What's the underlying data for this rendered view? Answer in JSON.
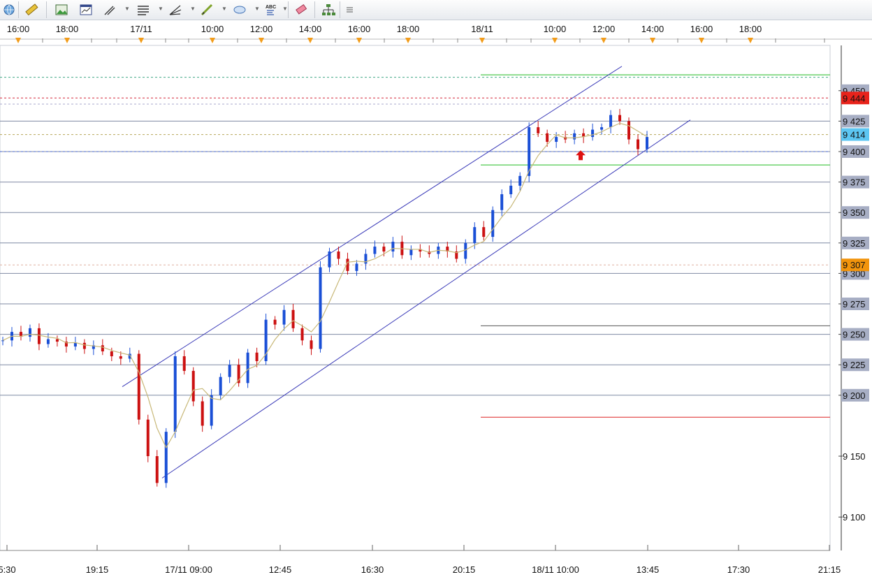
{
  "toolbar": {
    "tools": [
      {
        "name": "globe-icon"
      },
      {
        "name": "ruler-icon"
      },
      {
        "name": "picture-icon"
      },
      {
        "name": "window-chart-icon"
      },
      {
        "name": "line-tools-icon"
      },
      {
        "name": "fibonacci-icon"
      },
      {
        "name": "fan-icon"
      },
      {
        "name": "pen-icon"
      },
      {
        "name": "ellipse-icon"
      },
      {
        "name": "text-abc-icon",
        "text": "ABC"
      },
      {
        "name": "eraser-icon"
      },
      {
        "name": "tree-icon"
      },
      {
        "name": "menu-icon"
      }
    ]
  },
  "chart_data": {
    "type": "candlestick",
    "top_time_labels": [
      "16:00",
      "18:00",
      "17/11",
      "10:00",
      "12:00",
      "14:00",
      "16:00",
      "18:00",
      "18/11",
      "10:00",
      "12:00",
      "14:00",
      "16:00",
      "18:00"
    ],
    "bottom_time_labels": [
      "5:30",
      "19:15",
      "17/11 09:00",
      "12:45",
      "16:30",
      "20:15",
      "18/11 10:00",
      "13:45",
      "17:30",
      "21:15"
    ],
    "y_ticks": [
      "9 100",
      "9 150",
      "9 200",
      "9 225",
      "9 250",
      "9 275",
      "9 300",
      "9 325",
      "9 350",
      "9 375",
      "9 400",
      "9 425",
      "9 450"
    ],
    "y_values": [
      9100,
      9150,
      9200,
      9225,
      9250,
      9275,
      9300,
      9325,
      9350,
      9375,
      9400,
      9425,
      9450
    ],
    "ylim": [
      9080,
      9480
    ],
    "price_badges": [
      {
        "label": "9 444",
        "value": 9444,
        "bg": "#e8231b",
        "fg": "#ffffff"
      },
      {
        "label": "9 414",
        "value": 9414,
        "bg": "#5cc6f2",
        "fg": "#111111"
      },
      {
        "label": "9 307",
        "value": 9307,
        "bg": "#f2940c",
        "fg": "#111111"
      }
    ],
    "horizontal_levels": [
      {
        "value": 9463,
        "color": "#22bb22",
        "span": "right"
      },
      {
        "value": 9461,
        "color": "#44aa88",
        "span": "full",
        "dash": true
      },
      {
        "value": 9444,
        "color": "#d4283a",
        "span": "full",
        "dash": true
      },
      {
        "value": 9439,
        "color": "#aaaacc",
        "span": "full",
        "dash": true
      },
      {
        "value": 9414,
        "color": "#b8a85a",
        "span": "full",
        "dash": true
      },
      {
        "value": 9400,
        "color": "#4466cc",
        "span": "full",
        "dash": true
      },
      {
        "value": 9389,
        "color": "#22bb22",
        "span": "right"
      },
      {
        "value": 9307,
        "color": "#e0b0a0",
        "span": "full",
        "dash": true
      },
      {
        "value": 9257,
        "color": "#555555",
        "span": "right"
      },
      {
        "value": 9182,
        "color": "#dd2222",
        "span": "right"
      }
    ],
    "close_series": [
      9245,
      9252,
      9248,
      9255,
      9242,
      9246,
      9244,
      9240,
      9243,
      9238,
      9241,
      9236,
      9232,
      9230,
      9234,
      9180,
      9150,
      9128,
      9170,
      9232,
      9220,
      9195,
      9175,
      9200,
      9215,
      9225,
      9210,
      9235,
      9228,
      9262,
      9258,
      9270,
      9255,
      9245,
      9238,
      9305,
      9318,
      9312,
      9302,
      9308,
      9316,
      9322,
      9318,
      9326,
      9315,
      9320,
      9318,
      9316,
      9322,
      9318,
      9312,
      9325,
      9338,
      9330,
      9352,
      9365,
      9372,
      9380,
      9420,
      9415,
      9408,
      9412,
      9410,
      9415,
      9412,
      9418,
      9420,
      9430,
      9425,
      9410,
      9402,
      9412
    ],
    "channel": "ascending",
    "annotation": "up-arrow"
  },
  "colors": {
    "up_candle": "#1a4fd6",
    "down_candle": "#cc1111",
    "grid": "#7f8aa3",
    "ma_line": "#c8b878",
    "channel": "#3a3ab8",
    "tick_marker": "#f29c1a",
    "arrow": "#dd1111"
  }
}
